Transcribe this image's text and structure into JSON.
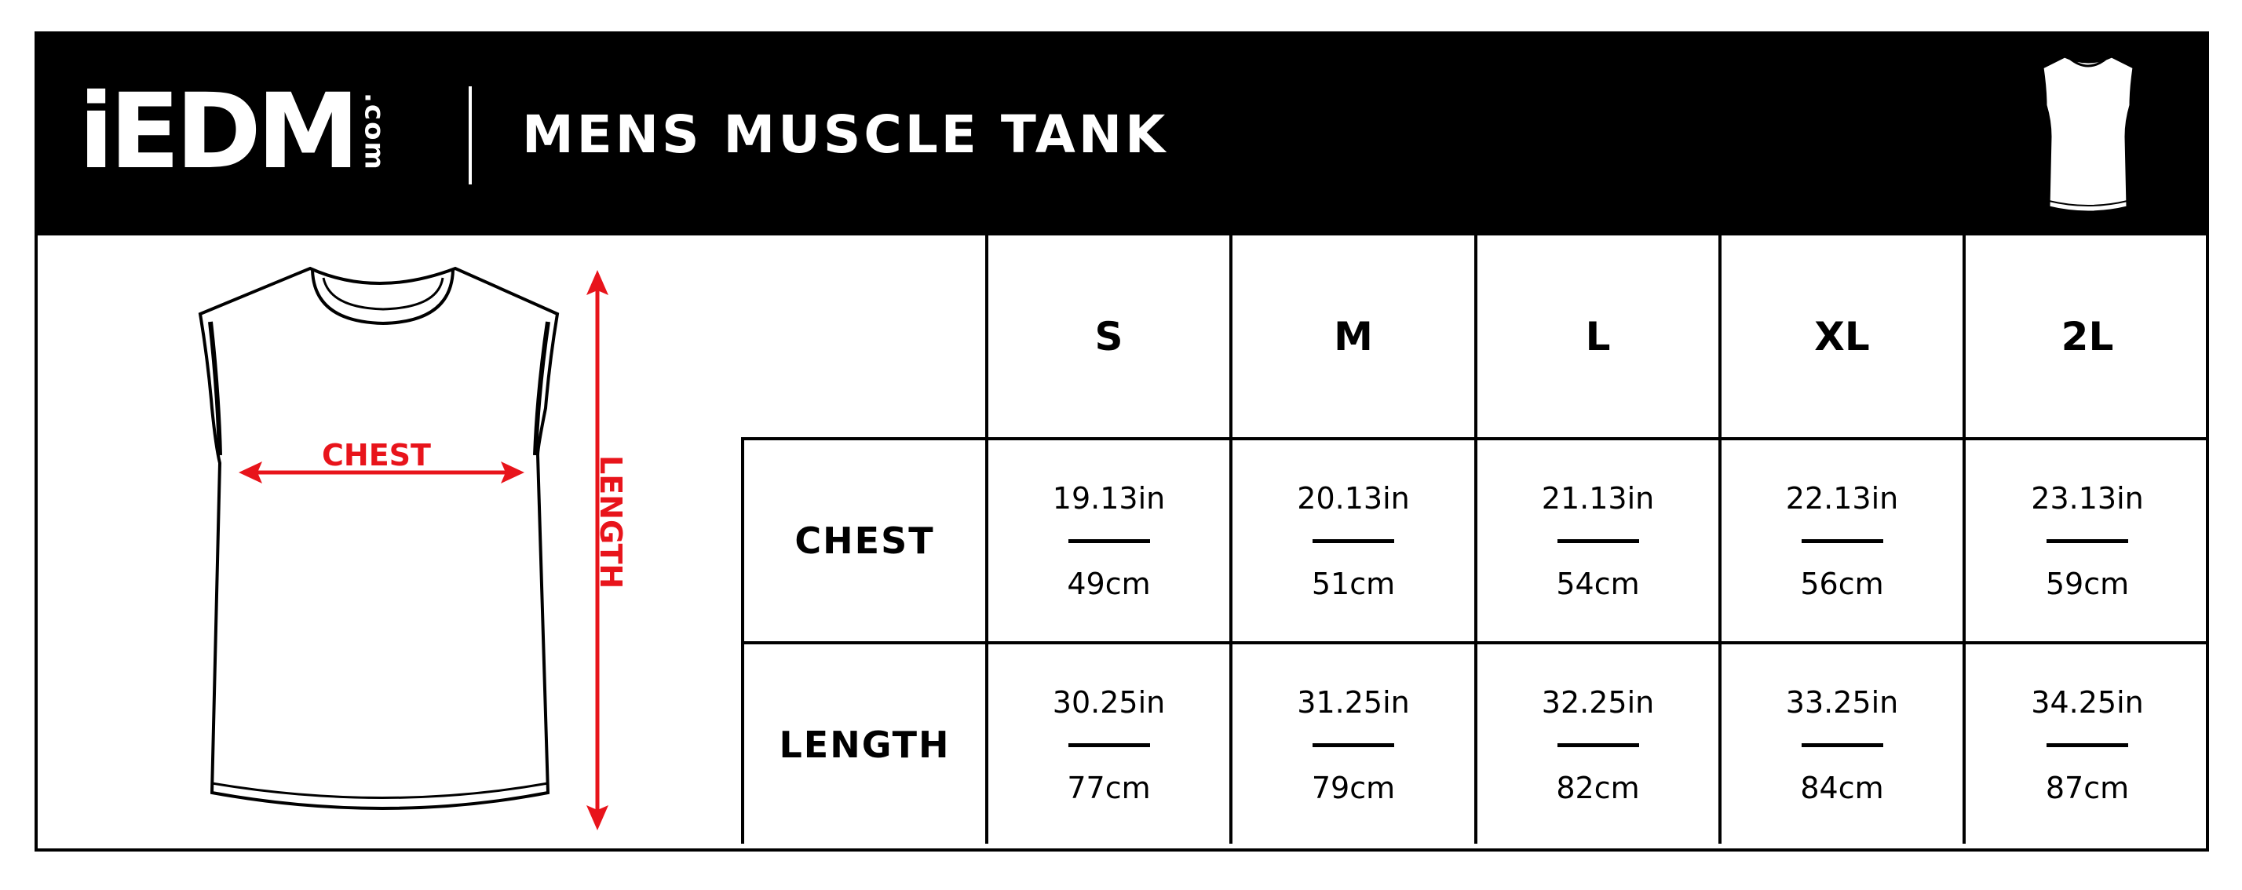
{
  "brand": {
    "logo_main": "iEDM",
    "logo_suffix": ".com"
  },
  "title": "MENS MUSCLE TANK",
  "diagram": {
    "chest_label": "CHEST",
    "length_label": "LENGTH",
    "arrow_color": "#e8141b",
    "icon": "tank-top-icon"
  },
  "sizes": [
    "S",
    "M",
    "L",
    "XL",
    "2L"
  ],
  "rows": [
    {
      "label": "CHEST",
      "values": [
        {
          "in": "19.13in",
          "cm": "49cm"
        },
        {
          "in": "20.13in",
          "cm": "51cm"
        },
        {
          "in": "21.13in",
          "cm": "54cm"
        },
        {
          "in": "22.13in",
          "cm": "56cm"
        },
        {
          "in": "23.13in",
          "cm": "59cm"
        }
      ]
    },
    {
      "label": "LENGTH",
      "values": [
        {
          "in": "30.25in",
          "cm": "77cm"
        },
        {
          "in": "31.25in",
          "cm": "79cm"
        },
        {
          "in": "32.25in",
          "cm": "82cm"
        },
        {
          "in": "33.25in",
          "cm": "84cm"
        },
        {
          "in": "34.25in",
          "cm": "87cm"
        }
      ]
    }
  ]
}
